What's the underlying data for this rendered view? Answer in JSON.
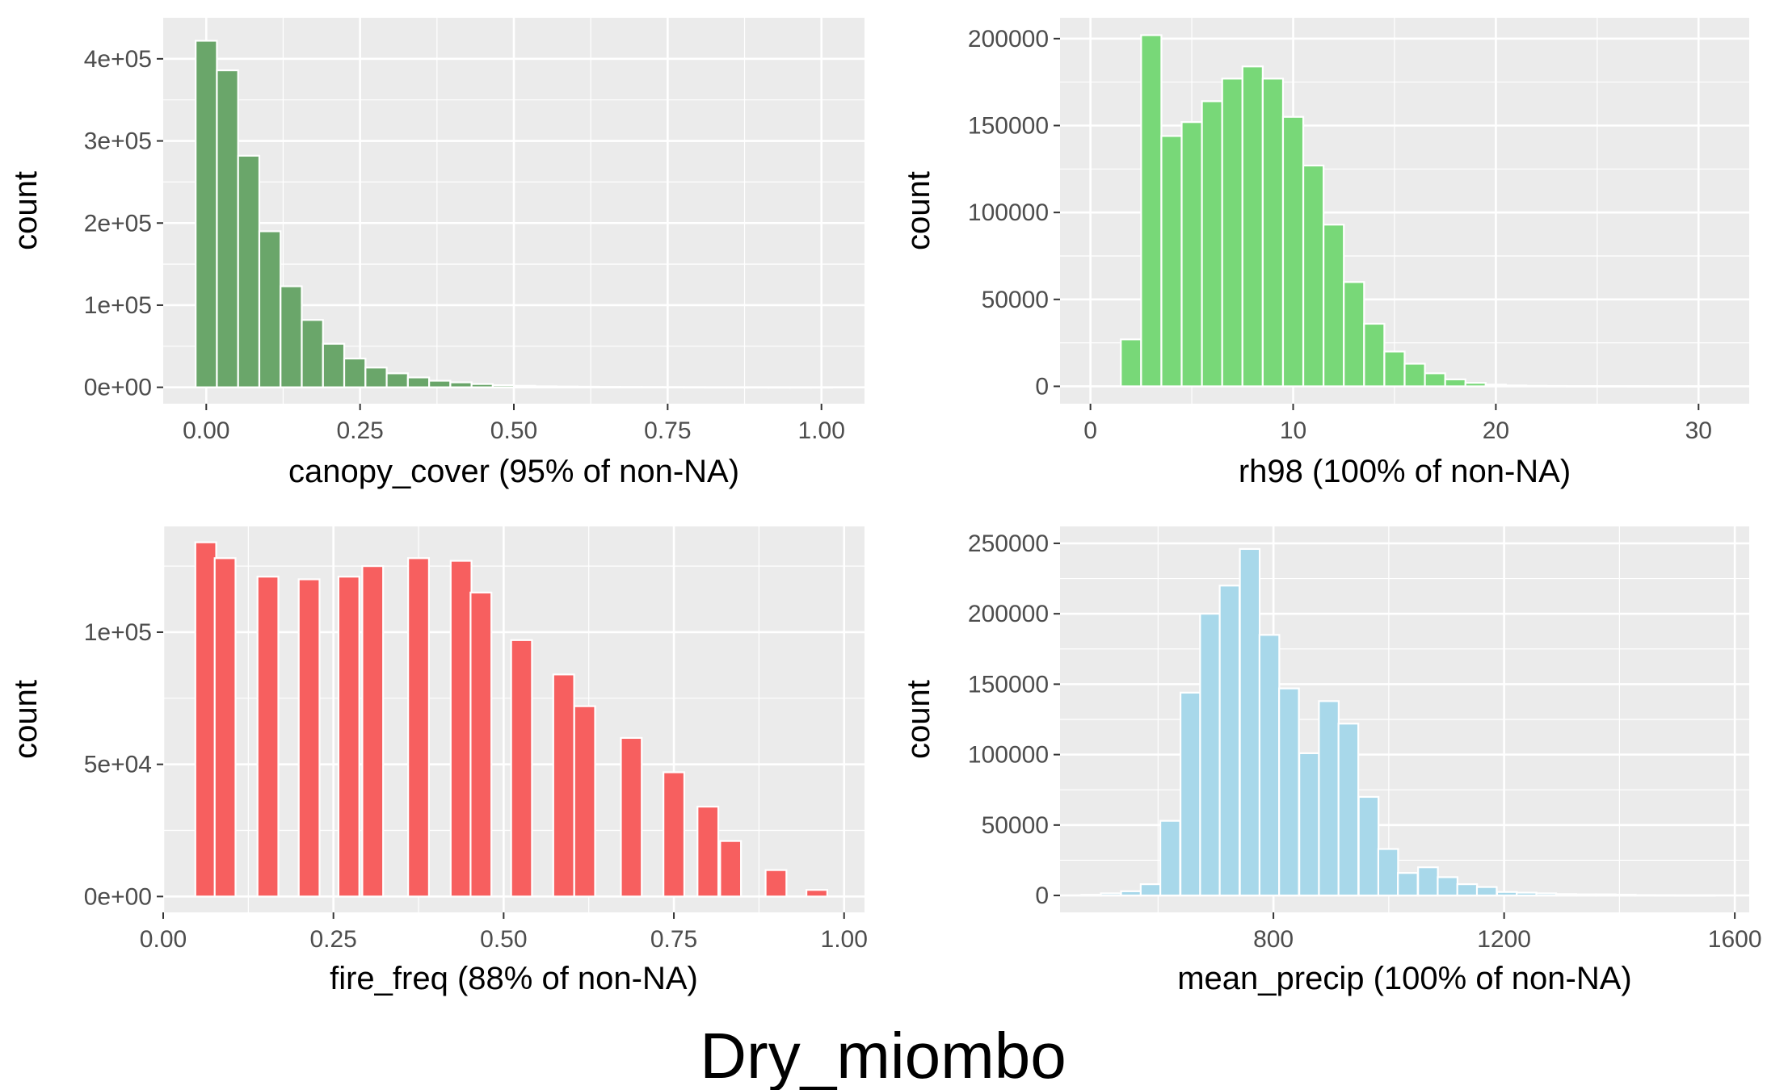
{
  "figure_title": "Dry_miombo",
  "chart_data": [
    {
      "type": "bar",
      "xlabel": "canopy_cover (95% of non-NA)",
      "ylabel": "count",
      "fill": "#6aa66a",
      "xlim": [
        -0.07,
        1.07
      ],
      "ylim": [
        -20000,
        450000
      ],
      "x_ticks": [
        0,
        0.25,
        0.5,
        0.75,
        1.0
      ],
      "x_tick_labels": [
        "0.00",
        "0.25",
        "0.50",
        "0.75",
        "1.00"
      ],
      "y_ticks": [
        0,
        100000,
        200000,
        300000,
        400000
      ],
      "y_tick_labels": [
        "0e+00",
        "1e+05",
        "2e+05",
        "3e+05",
        "4e+05"
      ],
      "binwidth": 0.0345,
      "x": [
        0.0,
        0.0345,
        0.069,
        0.1035,
        0.138,
        0.1725,
        0.207,
        0.2415,
        0.276,
        0.3105,
        0.345,
        0.3795,
        0.414,
        0.4485,
        0.483,
        0.5175,
        0.552,
        0.5865,
        0.621,
        0.6555,
        0.69,
        0.7245,
        0.759,
        0.7935,
        0.828,
        0.8625,
        0.897,
        0.9315,
        0.966,
        1.0
      ],
      "values": [
        422000,
        386000,
        282000,
        190000,
        123000,
        82000,
        53000,
        35000,
        24000,
        17000,
        12000,
        8000,
        6000,
        4000,
        2500,
        1800,
        1200,
        900,
        700,
        500,
        400,
        300,
        200,
        150,
        100,
        80,
        60,
        40,
        30,
        20
      ]
    },
    {
      "type": "bar",
      "xlabel": "rh98 (100% of non-NA)",
      "ylabel": "count",
      "fill": "#78d878",
      "xlim": [
        -1.5,
        32.5
      ],
      "ylim": [
        -10000,
        212000
      ],
      "x_ticks": [
        0,
        10,
        20,
        30
      ],
      "x_tick_labels": [
        "0",
        "10",
        "20",
        "30"
      ],
      "y_ticks": [
        0,
        50000,
        100000,
        150000,
        200000
      ],
      "y_tick_labels": [
        "0",
        "50000",
        "100000",
        "150000",
        "200000"
      ],
      "binwidth": 1.0,
      "x": [
        2,
        3,
        4,
        5,
        6,
        7,
        8,
        9,
        10,
        11,
        12,
        13,
        14,
        15,
        16,
        17,
        18,
        19,
        20,
        21,
        22,
        23,
        24,
        25,
        26,
        27,
        28,
        29,
        30
      ],
      "values": [
        27000,
        202000,
        144000,
        152000,
        164000,
        177000,
        184000,
        177000,
        155000,
        127000,
        93000,
        60000,
        36000,
        20000,
        13000,
        7500,
        4000,
        2000,
        1000,
        500,
        300,
        200,
        100,
        50,
        30,
        20,
        10,
        5,
        2
      ]
    },
    {
      "type": "bar",
      "xlabel": "fire_freq (88% of non-NA)",
      "ylabel": "count",
      "fill": "#f75f5f",
      "xlim": [
        0,
        1.03
      ],
      "ylim": [
        -6000,
        140000
      ],
      "x_ticks": [
        0,
        0.25,
        0.5,
        0.75,
        1.0
      ],
      "x_tick_labels": [
        "0.00",
        "0.25",
        "0.50",
        "0.75",
        "1.00"
      ],
      "y_ticks": [
        0,
        50000,
        100000
      ],
      "y_tick_labels": [
        "0e+00",
        "5e+04",
        "1e+05"
      ],
      "binwidth": 0.0306,
      "x": [
        0.0625,
        0.0909,
        0.1538,
        0.2143,
        0.2727,
        0.3077,
        0.375,
        0.4375,
        0.4667,
        0.5263,
        0.5882,
        0.619,
        0.6875,
        0.75,
        0.8,
        0.8333,
        0.9,
        0.96
      ],
      "values": [
        134000,
        128000,
        121000,
        120000,
        121000,
        125000,
        128000,
        127000,
        115000,
        97000,
        84000,
        72000,
        60000,
        47000,
        34000,
        21000,
        10000,
        2500
      ]
    },
    {
      "type": "bar",
      "xlabel": "mean_precip (100% of non-NA)",
      "ylabel": "count",
      "fill": "#a8d8ea",
      "xlim": [
        430,
        1625
      ],
      "ylim": [
        -12000,
        262000
      ],
      "x_ticks": [
        800,
        1200,
        1600
      ],
      "x_tick_labels": [
        "800",
        "1200",
        "1600"
      ],
      "y_ticks": [
        0,
        50000,
        100000,
        150000,
        200000,
        250000
      ],
      "y_tick_labels": [
        "0",
        "50000",
        "100000",
        "150000",
        "200000",
        "250000"
      ],
      "binwidth": 34.3,
      "x": [
        484,
        518,
        553,
        587,
        621,
        656,
        690,
        724,
        759,
        793,
        827,
        862,
        896,
        930,
        965,
        999,
        1033,
        1068,
        1102,
        1136,
        1170,
        1205,
        1239,
        1273,
        1308,
        1342,
        1376,
        1411,
        1445,
        1479,
        1513,
        1548
      ],
      "values": [
        500,
        1500,
        3000,
        8000,
        53000,
        144000,
        200000,
        220000,
        246000,
        185000,
        147000,
        101000,
        138000,
        122000,
        70000,
        33000,
        16000,
        20000,
        13000,
        8000,
        6000,
        2500,
        2000,
        1500,
        1000,
        800,
        800,
        600,
        300,
        200,
        100,
        100
      ]
    }
  ]
}
